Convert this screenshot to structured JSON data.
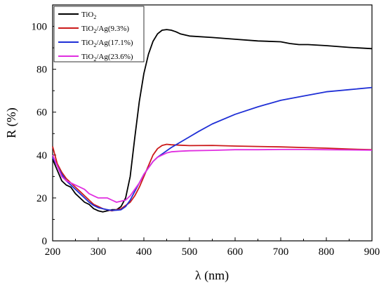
{
  "chart_data": {
    "type": "line",
    "xlabel": "λ (nm)",
    "ylabel": "R (%)",
    "xlim": [
      200,
      900
    ],
    "ylim": [
      0,
      110
    ],
    "xticks": [
      200,
      300,
      400,
      500,
      600,
      700,
      800,
      900
    ],
    "yticks": [
      0,
      20,
      40,
      60,
      80,
      100
    ],
    "grid": false,
    "legend_position": "top-left",
    "series": [
      {
        "name": "TiO₂",
        "label_main": "TiO",
        "label_sub": "2",
        "label_tail": "",
        "color": "#000000",
        "x": [
          200,
          210,
          220,
          230,
          240,
          250,
          260,
          270,
          280,
          290,
          300,
          310,
          320,
          330,
          340,
          350,
          360,
          370,
          380,
          390,
          400,
          410,
          420,
          430,
          440,
          450,
          460,
          470,
          480,
          500,
          550,
          600,
          650,
          700,
          720,
          740,
          760,
          800,
          850,
          900
        ],
        "y": [
          38,
          33,
          28,
          26,
          25,
          22,
          20,
          18,
          17,
          15,
          14,
          13.5,
          14,
          14.5,
          14.5,
          16,
          20,
          30,
          48,
          65,
          78,
          87,
          93,
          96.5,
          98.2,
          98.5,
          98.2,
          97.5,
          96.5,
          95.5,
          94.8,
          94,
          93.2,
          92.8,
          92,
          91.5,
          91.5,
          91,
          90.2,
          89.6
        ]
      },
      {
        "name": "TiO₂/Ag(9.3%)",
        "label_main": "TiO",
        "label_sub": "2",
        "label_tail": "/Ag(9.3%)",
        "color": "#cc1a1a",
        "x": [
          200,
          210,
          220,
          230,
          240,
          250,
          260,
          270,
          280,
          290,
          300,
          310,
          320,
          330,
          340,
          350,
          360,
          370,
          380,
          390,
          400,
          410,
          420,
          430,
          440,
          450,
          460,
          480,
          500,
          550,
          600,
          650,
          700,
          750,
          800,
          850,
          900
        ],
        "y": [
          44,
          36,
          32,
          29,
          27,
          25,
          23,
          21,
          19,
          17,
          16,
          15,
          14.5,
          14,
          14.5,
          15,
          16.5,
          18,
          21,
          25,
          30,
          35,
          40,
          43,
          44.5,
          45,
          44.8,
          44.6,
          44.4,
          44.5,
          44.2,
          44,
          43.8,
          43.5,
          43.2,
          42.8,
          42.5
        ]
      },
      {
        "name": "TiO₂/Ag(17.1%)",
        "label_main": "TiO",
        "label_sub": "2",
        "label_tail": "/Ag(17.1%)",
        "color": "#1f2fd6",
        "x": [
          200,
          210,
          220,
          230,
          240,
          250,
          260,
          270,
          280,
          290,
          300,
          310,
          320,
          330,
          340,
          350,
          360,
          370,
          380,
          390,
          400,
          410,
          420,
          430,
          440,
          450,
          460,
          480,
          500,
          520,
          550,
          600,
          650,
          700,
          750,
          800,
          850,
          900
        ],
        "y": [
          39,
          35,
          31,
          28,
          26,
          24,
          22,
          20,
          18,
          16.5,
          15.5,
          15,
          14.5,
          14.2,
          14.3,
          14.5,
          16,
          19,
          23,
          27,
          31,
          34,
          37,
          39,
          40.5,
          42,
          43.5,
          46,
          48.5,
          51,
          54.5,
          59,
          62.5,
          65.5,
          67.5,
          69.5,
          70.5,
          71.5
        ]
      },
      {
        "name": "TiO₂/Ag(23.6%)",
        "label_main": "TiO",
        "label_sub": "2",
        "label_tail": "/Ag(23.6%)",
        "color": "#e02ee0",
        "x": [
          200,
          210,
          220,
          230,
          240,
          250,
          260,
          270,
          280,
          290,
          300,
          310,
          320,
          330,
          340,
          350,
          360,
          370,
          380,
          390,
          400,
          410,
          420,
          430,
          440,
          450,
          460,
          480,
          500,
          550,
          600,
          650,
          700,
          750,
          800,
          850,
          900
        ],
        "y": [
          40,
          35,
          30,
          28,
          27,
          26,
          25,
          24,
          22,
          21,
          20,
          20,
          20,
          19,
          18,
          18.5,
          19,
          21,
          24,
          27,
          31,
          34,
          37,
          39,
          40,
          41,
          41.5,
          41.8,
          42,
          42.2,
          42.5,
          42.5,
          42.6,
          42.6,
          42.5,
          42.4,
          42.3
        ]
      }
    ]
  }
}
